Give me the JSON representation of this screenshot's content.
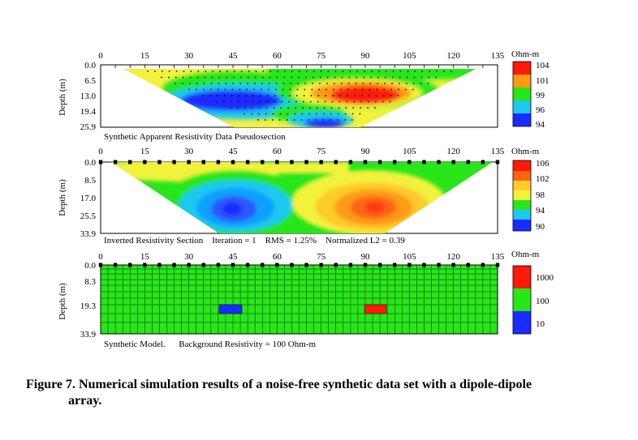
{
  "caption": {
    "line1": "Figure 7. Numerical simulation results of a noise-free synthetic data set with a dipole-dipole",
    "line2": "array."
  },
  "colors": {
    "blue": "#1a2cff",
    "cyan": "#1ec8ee",
    "green": "#28e61a",
    "yellow": "#f2f23c",
    "orange": "#ff9a14",
    "red": "#ff1a0a"
  },
  "x_axis_ticks": [
    "0",
    "15",
    "30",
    "45",
    "60",
    "75",
    "90",
    "105",
    "120",
    "135"
  ],
  "panels": [
    {
      "ylabel": "Depth (m)",
      "y_ticks": [
        "0.0",
        "6.5",
        "13.0",
        "19.4",
        "25.9"
      ],
      "legend_unit": "Ohm-m",
      "legend_values": [
        "104",
        "101",
        "99",
        "96",
        "94"
      ],
      "caption": "Synthetic Apparent Resistivity Data Pseudosection"
    },
    {
      "ylabel": "Depth (m)",
      "y_ticks": [
        "0.0",
        "8.5",
        "17.0",
        "25.5",
        "33.9"
      ],
      "legend_unit": "Ohm-m",
      "legend_values": [
        "106",
        "102",
        "98",
        "94",
        "90"
      ],
      "caption": "Inverted Resistivity Section    Iteration = 1    RMS = 1.25%    Normalized L2 = 0.39"
    },
    {
      "ylabel": "Depth (m)",
      "y_ticks": [
        "0.0",
        "8.3",
        "19.3",
        "33.9"
      ],
      "legend_unit": "Ohm-m",
      "legend_values": [
        "1000",
        "100",
        "10"
      ],
      "caption": "Synthetic Model.      Background Resistivity = 100 Ohm-m"
    }
  ]
}
